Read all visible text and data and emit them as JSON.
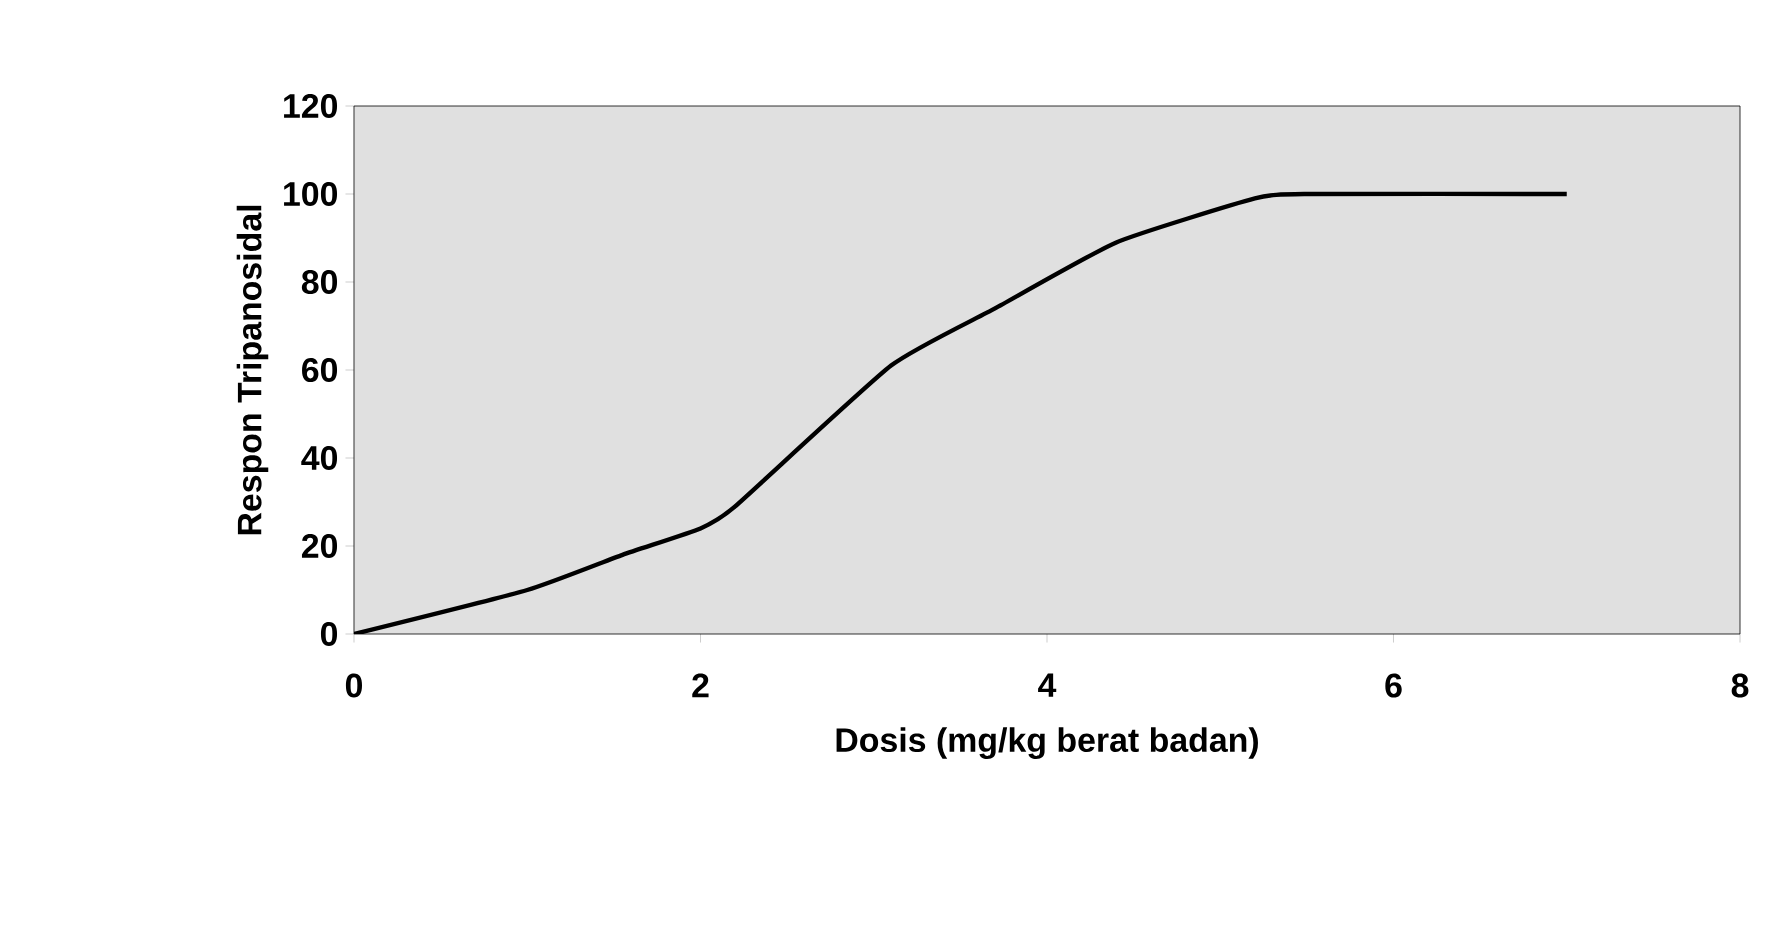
{
  "chart_data": {
    "type": "line",
    "xlabel": "Dosis (mg/kg berat badan)",
    "ylabel": "Respon Tripanosidal",
    "x": [
      0,
      1,
      1.55,
      2,
      2.2,
      3.1,
      3.7,
      4.4,
      5.2,
      5.5,
      7
    ],
    "series": [
      {
        "color": "#000000",
        "values": [
          0,
          10,
          18,
          24,
          29,
          61,
          74,
          89,
          99,
          100,
          100
        ]
      }
    ],
    "xlim": [
      0,
      8
    ],
    "ylim": [
      0,
      120
    ],
    "xticks": [
      0,
      2,
      4,
      6,
      8
    ],
    "yticks": [
      0,
      20,
      40,
      60,
      80,
      100,
      120
    ],
    "grid": false,
    "marker": "none",
    "line_style": "solid"
  }
}
